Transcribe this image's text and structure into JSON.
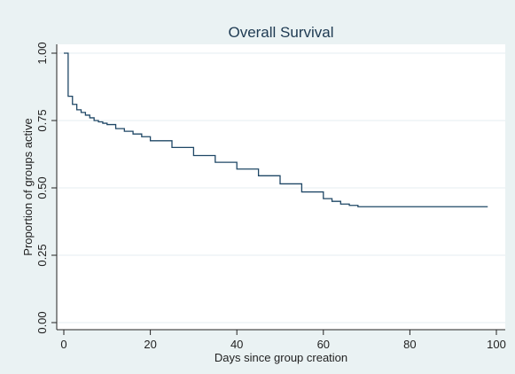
{
  "chart_data": {
    "type": "line",
    "title": "Overall Survival",
    "xlabel": "Days since group creation",
    "ylabel": "Proportion of groups active",
    "xlim": [
      0,
      100
    ],
    "ylim": [
      0,
      1
    ],
    "xticks": [
      0,
      20,
      40,
      60,
      80,
      100
    ],
    "yticks": [
      0,
      0.25,
      0.5,
      0.75,
      1
    ],
    "ytick_labels": [
      "0.00",
      "0.25",
      "0.50",
      "0.75",
      "1.00"
    ],
    "grid": "horizontal",
    "legend": "none",
    "colors": {
      "background": "#eaf2f3",
      "plot_area": "#ffffff",
      "line": "#1f4766",
      "grid": "#e6eef0",
      "axis": "#222222"
    },
    "series": [
      {
        "step": true,
        "x": [
          0,
          1,
          2,
          3,
          4,
          5,
          6,
          7,
          8,
          9,
          10,
          12,
          14,
          16,
          18,
          20,
          25,
          30,
          35,
          40,
          45,
          50,
          55,
          60,
          62,
          64,
          66,
          68,
          98
        ],
        "y": [
          1.0,
          0.84,
          0.81,
          0.79,
          0.78,
          0.77,
          0.76,
          0.75,
          0.745,
          0.74,
          0.735,
          0.72,
          0.71,
          0.7,
          0.69,
          0.675,
          0.65,
          0.62,
          0.595,
          0.57,
          0.545,
          0.515,
          0.485,
          0.46,
          0.45,
          0.44,
          0.435,
          0.43,
          0.43
        ]
      }
    ]
  }
}
